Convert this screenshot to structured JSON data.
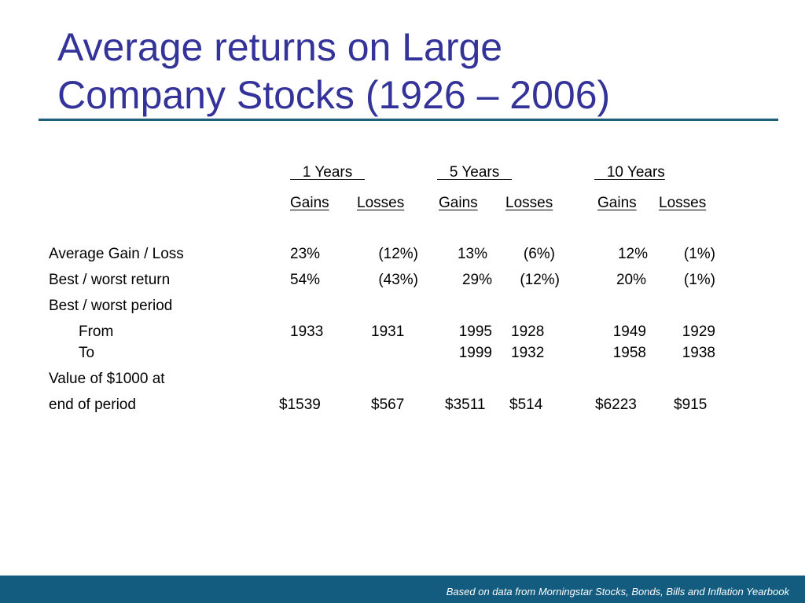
{
  "title": {
    "line1": "Average returns on Large",
    "line2": "Company Stocks (1926 – 2006)"
  },
  "table": {
    "groups": [
      "   1 Years   ",
      "   5 Years   ",
      "   10 Years"
    ],
    "subheaders": [
      "Gains ",
      "Losses",
      "Gains",
      "Losses",
      "Gains",
      "Losses"
    ],
    "rows": {
      "avg": {
        "label": "Average Gain / Loss",
        "values": [
          "23%",
          "(12%)",
          "13%",
          "(6%)",
          "12%",
          "(1%)"
        ]
      },
      "best": {
        "label": "Best / worst return",
        "values": [
          "54%",
          "(43%)",
          "29%",
          "(12%)",
          "20%",
          "(1%)"
        ]
      },
      "period": {
        "label": "Best / worst period"
      },
      "from": {
        "label": "From",
        "values": [
          "1933",
          "1931",
          "1995",
          "1928",
          "1949",
          "1929"
        ]
      },
      "to": {
        "label": "To",
        "values": [
          "1999",
          "1932",
          "1958",
          "1938"
        ]
      },
      "value1": {
        "label": "Value of $1000 at"
      },
      "value2": {
        "label": "end of period",
        "values": [
          "$1539",
          "$567",
          "$3511",
          "$514",
          "$6223",
          "$915"
        ]
      }
    }
  },
  "footer": {
    "text": "Based on data from Morningstar Stocks, Bonds, Bills and Inflation Yearbook"
  },
  "colors": {
    "title": "#333399",
    "rule": "#1f5f7a",
    "footer_bar": "#135b7f",
    "footer_text": "#ffffff"
  }
}
